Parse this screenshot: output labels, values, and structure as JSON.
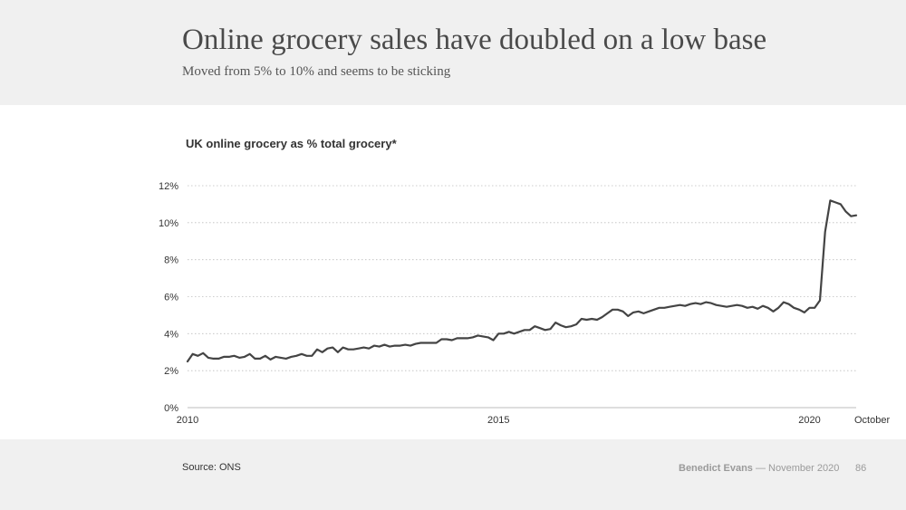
{
  "header": {
    "title": "Online grocery sales have doubled on a low base",
    "subtitle": "Moved from 5% to 10% and seems to be sticking"
  },
  "footer": {
    "source": "Source: ONS",
    "author": "Benedict Evans",
    "date": "— November 2020",
    "page_number": "86"
  },
  "chart_data": {
    "type": "line",
    "title": "UK online grocery as % total grocery*",
    "xlabel": "",
    "ylabel": "",
    "x_start": "2010-01",
    "x_end": "2020-10",
    "ylim": [
      0,
      12
    ],
    "yticks": [
      0,
      2,
      4,
      6,
      8,
      10,
      12
    ],
    "ytick_labels": [
      "0%",
      "2%",
      "4%",
      "6%",
      "8%",
      "10%",
      "12%"
    ],
    "xticks": [
      {
        "date": "2010-01",
        "label": "2010"
      },
      {
        "date": "2015-01",
        "label": "2015"
      },
      {
        "date": "2020-01",
        "label": "2020"
      },
      {
        "date": "2020-10",
        "label": "October"
      }
    ],
    "grid": true,
    "line_color": "#444444",
    "series": [
      {
        "values": [
          2.5,
          2.9,
          2.8,
          2.95,
          2.7,
          2.65,
          2.65,
          2.75,
          2.75,
          2.8,
          2.7,
          2.75,
          2.9,
          2.65,
          2.65,
          2.8,
          2.6,
          2.75,
          2.7,
          2.65,
          2.75,
          2.8,
          2.9,
          2.8,
          2.8,
          3.15,
          3.0,
          3.2,
          3.25,
          3.0,
          3.25,
          3.15,
          3.15,
          3.2,
          3.25,
          3.2,
          3.35,
          3.3,
          3.4,
          3.3,
          3.35,
          3.35,
          3.4,
          3.35,
          3.45,
          3.5,
          3.5,
          3.5,
          3.5,
          3.7,
          3.7,
          3.65,
          3.75,
          3.75,
          3.75,
          3.8,
          3.9,
          3.85,
          3.8,
          3.65,
          4.0,
          4.0,
          4.1,
          4.0,
          4.1,
          4.2,
          4.2,
          4.4,
          4.3,
          4.2,
          4.25,
          4.6,
          4.45,
          4.35,
          4.4,
          4.5,
          4.8,
          4.75,
          4.8,
          4.75,
          4.9,
          5.1,
          5.3,
          5.3,
          5.2,
          4.95,
          5.15,
          5.2,
          5.1,
          5.2,
          5.3,
          5.4,
          5.4,
          5.45,
          5.5,
          5.55,
          5.5,
          5.6,
          5.65,
          5.6,
          5.7,
          5.65,
          5.55,
          5.5,
          5.45,
          5.5,
          5.55,
          5.5,
          5.4,
          5.45,
          5.35,
          5.5,
          5.4,
          5.2,
          5.4,
          5.7,
          5.6,
          5.4,
          5.3,
          5.15,
          5.4,
          5.4,
          5.8,
          9.5,
          11.2,
          11.1,
          11.0,
          10.6,
          10.35,
          10.4
        ]
      }
    ]
  }
}
